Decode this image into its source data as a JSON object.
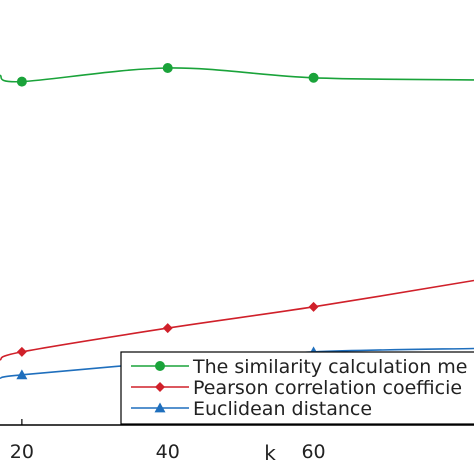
{
  "chart_data": {
    "type": "line",
    "xlabel": "k",
    "x_ticks": [
      20,
      40,
      60
    ],
    "xlim": [
      17,
      82
    ],
    "ylim": [
      0,
      1
    ],
    "grid": false,
    "legend_position": "bottom-right",
    "series": [
      {
        "name": "The similarity calculation me",
        "color": "#1aa33a",
        "marker": "circle",
        "x": [
          17,
          20,
          40,
          60,
          82
        ],
        "y": [
          0.823,
          0.808,
          0.84,
          0.817,
          0.812
        ]
      },
      {
        "name": "Pearson correlation coefficie",
        "color": "#d0202a",
        "marker": "diamond",
        "x": [
          17,
          20,
          40,
          60,
          82
        ],
        "y": [
          0.153,
          0.172,
          0.228,
          0.278,
          0.34
        ]
      },
      {
        "name": "Euclidean distance",
        "color": "#1f6fbd",
        "marker": "triangle",
        "x": [
          17,
          20,
          40,
          60,
          82
        ],
        "y": [
          0.11,
          0.118,
          0.148,
          0.172,
          0.18
        ]
      }
    ]
  }
}
